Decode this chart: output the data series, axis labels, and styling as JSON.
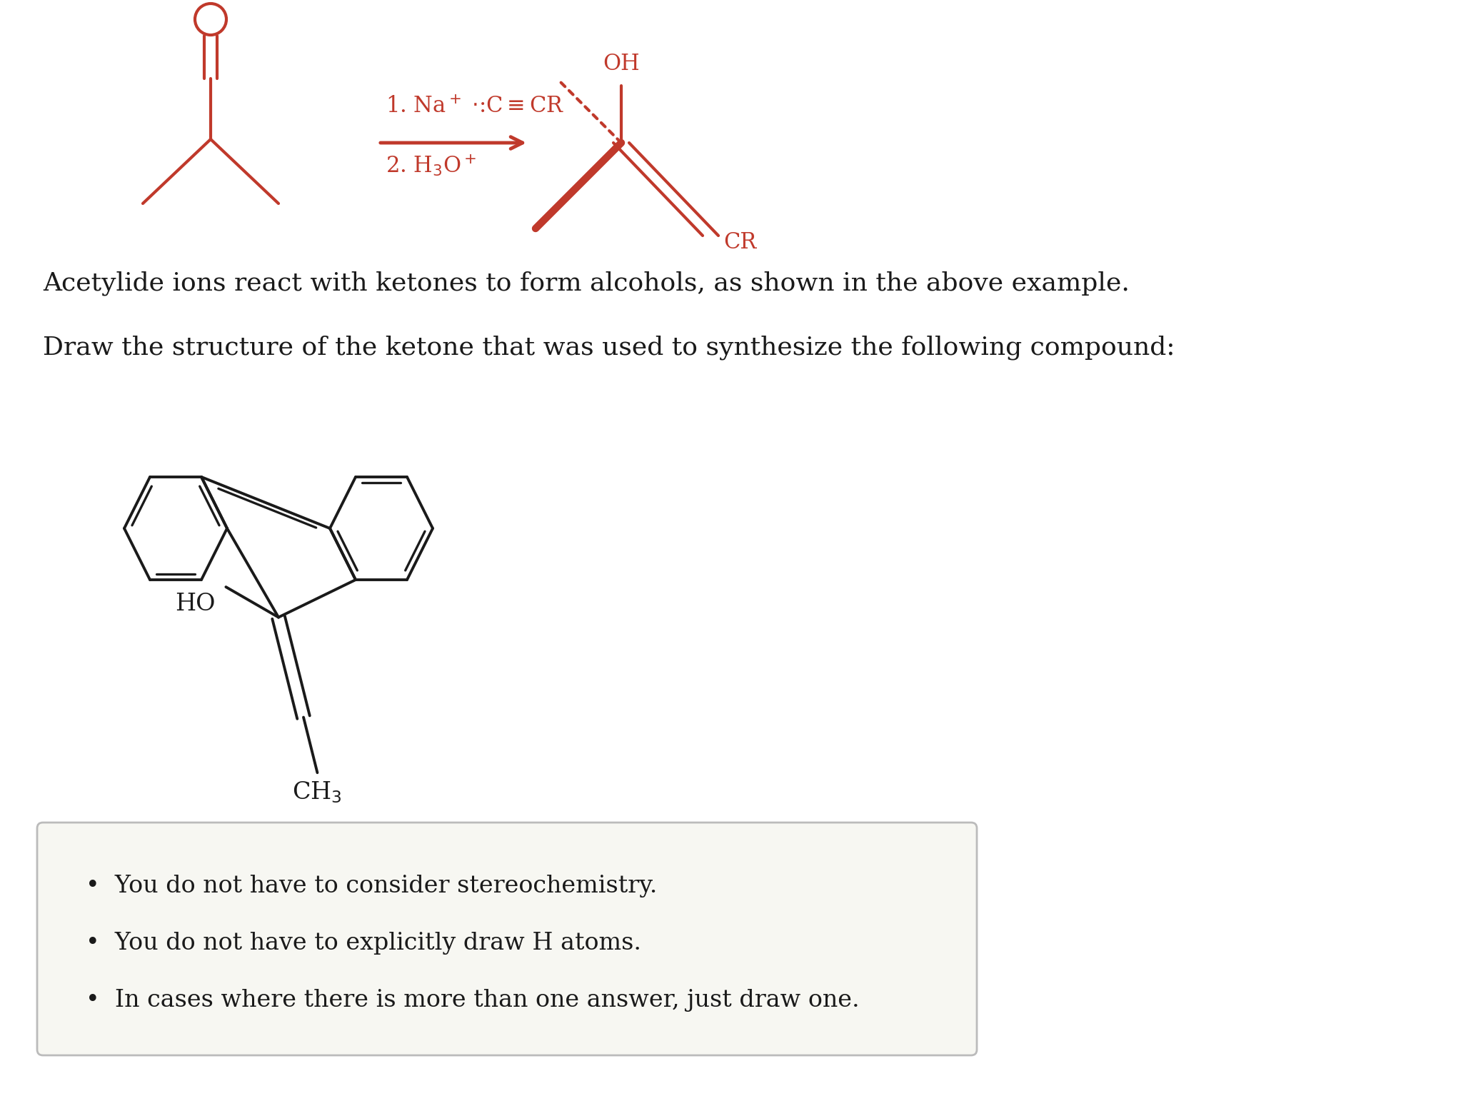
{
  "bg_color": "#ffffff",
  "red_color": "#c0392b",
  "black_color": "#1a1a1a",
  "box_bg": "#f7f7f2",
  "box_border": "#bbbbbb",
  "text1": "Acetylide ions react with ketones to form alcohols, as shown in the above example.",
  "text2": "Draw the structure of the ketone that was used to synthesize the following compound:",
  "bullet1": "You do not have to consider stereochemistry.",
  "bullet2": "You do not have to explicitly draw H atoms.",
  "bullet3": "In cases where there is more than one answer, just draw one."
}
